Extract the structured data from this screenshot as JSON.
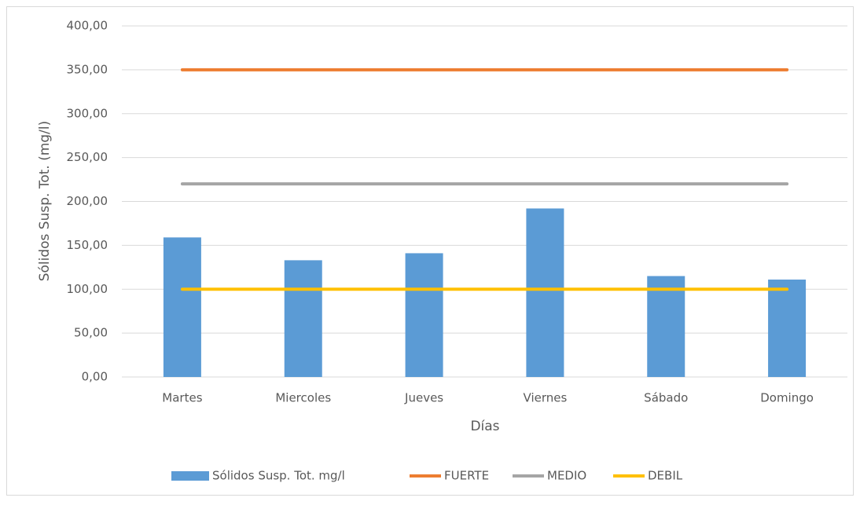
{
  "chart_data": {
    "type": "bar",
    "y_label": "Sólidos Susp. Tot. (mg/l)",
    "x_label": "Días",
    "categories": [
      "Martes",
      "Miercoles",
      "Jueves",
      "Viernes",
      "Sábado",
      "Domingo"
    ],
    "series": [
      {
        "name": "Sólidos Susp. Tot. mg/l",
        "type": "bar",
        "color": "#5b9bd5",
        "values": [
          159,
          133,
          141,
          192,
          115,
          111
        ]
      },
      {
        "name": "FUERTE",
        "type": "line",
        "color": "#ed7d31",
        "values": [
          350,
          350,
          350,
          350,
          350,
          350
        ]
      },
      {
        "name": "MEDIO",
        "type": "line",
        "color": "#a5a5a5",
        "values": [
          220,
          220,
          220,
          220,
          220,
          220
        ]
      },
      {
        "name": "DEBIL",
        "type": "line",
        "color": "#ffc000",
        "values": [
          100,
          100,
          100,
          100,
          100,
          100
        ]
      }
    ],
    "ylim": [
      0,
      400
    ],
    "yticks": [
      {
        "value": 0,
        "label": "0,00"
      },
      {
        "value": 50,
        "label": "50,00"
      },
      {
        "value": 100,
        "label": "100,00"
      },
      {
        "value": 150,
        "label": "150,00"
      },
      {
        "value": 200,
        "label": "200,00"
      },
      {
        "value": 250,
        "label": "250,00"
      },
      {
        "value": 300,
        "label": "300,00"
      },
      {
        "value": 350,
        "label": "350,00"
      },
      {
        "value": 400,
        "label": "400,00"
      }
    ],
    "grid": true,
    "legend": "bottom"
  }
}
